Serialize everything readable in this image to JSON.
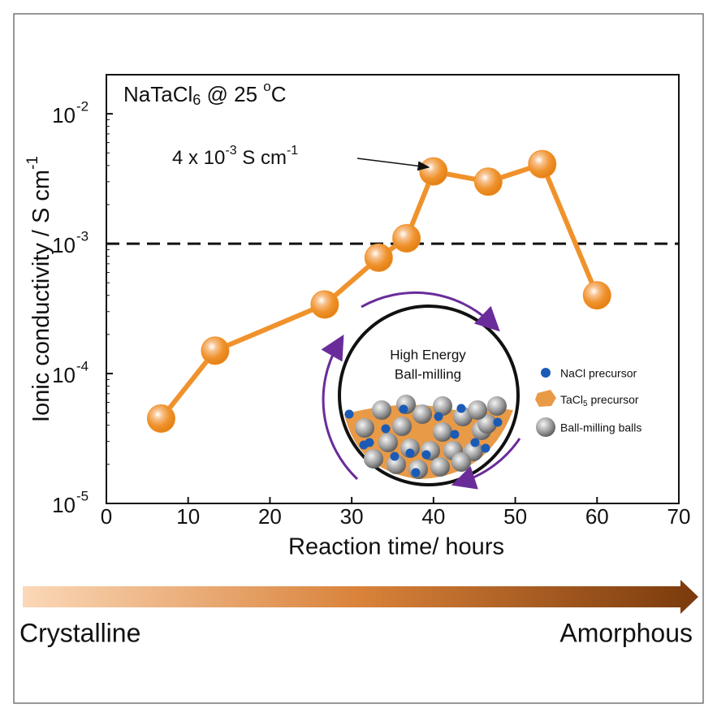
{
  "chart_data": {
    "type": "line",
    "title": {
      "text": "NaTaCl",
      "subscript": "6",
      "rest": " @ 25 ",
      "superscript": "o",
      "end": "C"
    },
    "annotation": {
      "text": "4 x 10",
      "exp1": "-3",
      "mid": " S cm",
      "exp2": "-1"
    },
    "x_label": "Reaction time/ hours",
    "y_label": {
      "text": "Ionic conductivity / S cm",
      "exponent": "-1"
    },
    "x": [
      6.7,
      13.3,
      26.7,
      33.3,
      36.7,
      40,
      46.7,
      53.3,
      60
    ],
    "series": [
      {
        "name": "NaTaCl6",
        "color": "#f0922c",
        "values": [
          4.5e-05,
          0.00015,
          0.00034,
          0.00078,
          0.0011,
          0.0036,
          0.003,
          0.0041,
          0.0004
        ]
      }
    ],
    "xlim": [
      0,
      70
    ],
    "xticks": [
      0,
      10,
      20,
      30,
      40,
      50,
      60,
      70
    ],
    "ylim": [
      1e-05,
      0.02
    ],
    "yticks": [
      {
        "value": 1e-05,
        "label": "10",
        "exponent": "-5"
      },
      {
        "value": 0.0001,
        "label": "10",
        "exponent": "-4"
      },
      {
        "value": 0.001,
        "label": "10",
        "exponent": "-3"
      },
      {
        "value": 0.01,
        "label": "10",
        "exponent": "-2"
      }
    ],
    "log_scale_y": true,
    "reference_line": 0.001,
    "inset": {
      "title": [
        "High Energy",
        "Ball-milling"
      ],
      "legend": [
        {
          "text": "NaCl precursor"
        },
        {
          "text": "TaCl",
          "subscript": "5",
          "rest": " precursor"
        },
        {
          "text": "Ball-milling balls"
        }
      ]
    },
    "gradient_labels": [
      "Crystalline",
      "Amorphous"
    ]
  }
}
